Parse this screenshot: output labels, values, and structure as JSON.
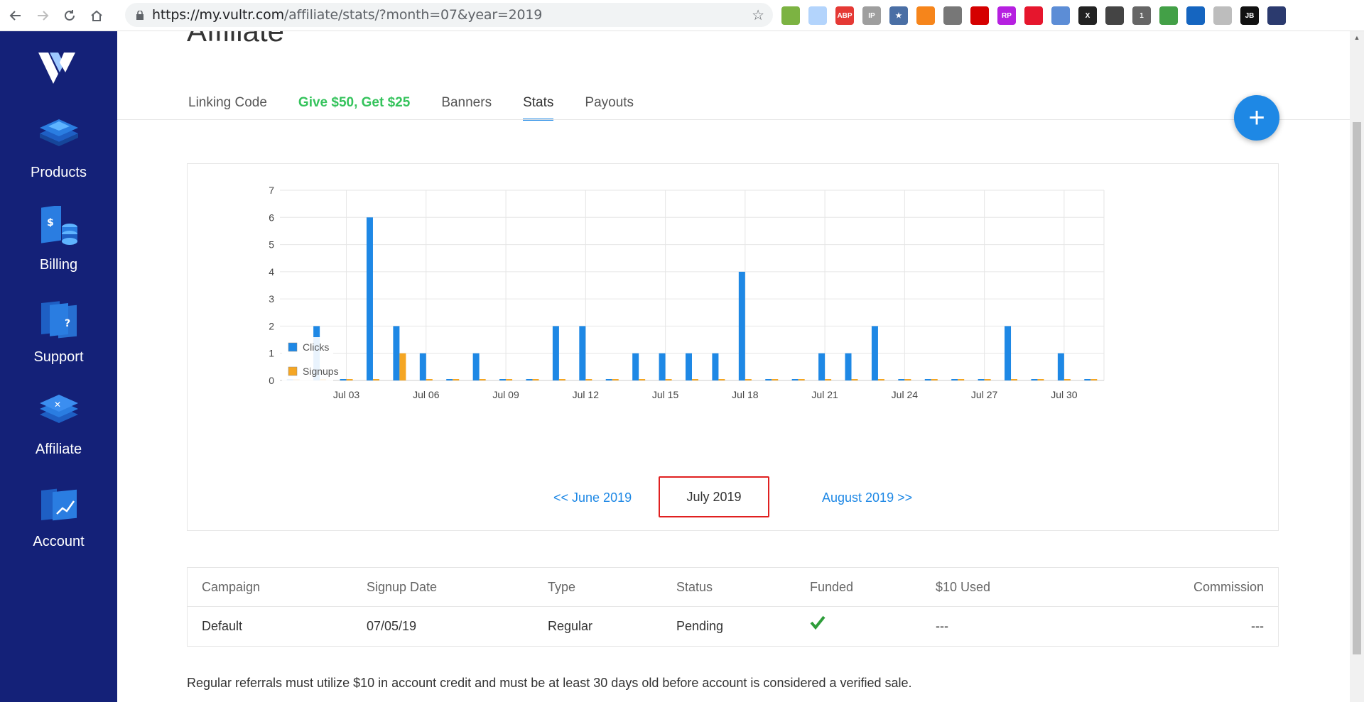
{
  "browser": {
    "url_host": "https://my.vultr.com",
    "url_path": "/affiliate/stats/?month=07&year=2019",
    "extensions": [
      {
        "name": "circle-ext-icon",
        "color": "#7cb342",
        "text": ""
      },
      {
        "name": "cloud-ext-icon",
        "color": "#b3d4fc",
        "text": ""
      },
      {
        "name": "adblock-plus-icon",
        "color": "#e53935",
        "text": "ABP"
      },
      {
        "name": "ip-ext-icon",
        "color": "#9e9e9e",
        "text": "IP"
      },
      {
        "name": "bookmark-star-ext-icon",
        "color": "#4a6fa5",
        "text": "★"
      },
      {
        "name": "metamask-fox-icon",
        "color": "#f6851b",
        "text": ""
      },
      {
        "name": "parachute-ext-icon",
        "color": "#777777",
        "text": ""
      },
      {
        "name": "red-circle-ext-icon",
        "color": "#d50000",
        "text": ""
      },
      {
        "name": "rp-ext-icon",
        "color": "#b620e0",
        "text": "RP"
      },
      {
        "name": "weibo-ext-icon",
        "color": "#e6162d",
        "text": ""
      },
      {
        "name": "feather-ext-icon",
        "color": "#5c8dd6",
        "text": ""
      },
      {
        "name": "x-ext-icon",
        "color": "#222222",
        "text": "X"
      },
      {
        "name": "aperture-ext-icon",
        "color": "#444444",
        "text": ""
      },
      {
        "name": "cat-ext-icon",
        "color": "#666666",
        "text": "1"
      },
      {
        "name": "green-leaf-ext-icon",
        "color": "#43a047",
        "text": ""
      },
      {
        "name": "globe-ext-icon",
        "color": "#1565c0",
        "text": ""
      },
      {
        "name": "check-ext-icon",
        "color": "#bdbdbd",
        "text": ""
      },
      {
        "name": "jb-ext-icon",
        "color": "#111111",
        "text": "JB"
      },
      {
        "name": "profile-avatar-icon",
        "color": "#2b3a6e",
        "text": ""
      }
    ]
  },
  "sidebar": {
    "items": [
      {
        "label": "Products"
      },
      {
        "label": "Billing"
      },
      {
        "label": "Support"
      },
      {
        "label": "Affiliate"
      },
      {
        "label": "Account"
      }
    ]
  },
  "page": {
    "title": "Affiliate",
    "tabs": [
      {
        "label": "Linking Code"
      },
      {
        "label": "Give $50, Get $25"
      },
      {
        "label": "Banners"
      },
      {
        "label": "Stats"
      },
      {
        "label": "Payouts"
      }
    ]
  },
  "chart_data": {
    "type": "bar",
    "categories": [
      "Jul 01",
      "Jul 02",
      "Jul 03",
      "Jul 04",
      "Jul 05",
      "Jul 06",
      "Jul 07",
      "Jul 08",
      "Jul 09",
      "Jul 10",
      "Jul 11",
      "Jul 12",
      "Jul 13",
      "Jul 14",
      "Jul 15",
      "Jul 16",
      "Jul 17",
      "Jul 18",
      "Jul 19",
      "Jul 20",
      "Jul 21",
      "Jul 22",
      "Jul 23",
      "Jul 24",
      "Jul 25",
      "Jul 26",
      "Jul 27",
      "Jul 28",
      "Jul 29",
      "Jul 30",
      "Jul 31"
    ],
    "tick_labels": [
      "Jul 03",
      "Jul 06",
      "Jul 09",
      "Jul 12",
      "Jul 15",
      "Jul 18",
      "Jul 21",
      "Jul 24",
      "Jul 27",
      "Jul 30"
    ],
    "series": [
      {
        "name": "Clicks",
        "color": "#1e88e5",
        "values": [
          0,
          2,
          0,
          6,
          2,
          1,
          0,
          1,
          0,
          0,
          2,
          2,
          0,
          1,
          1,
          1,
          1,
          4,
          0,
          0,
          1,
          1,
          2,
          0,
          0,
          0,
          0,
          2,
          0,
          1,
          0
        ]
      },
      {
        "name": "Signups",
        "color": "#f5a623",
        "values": [
          0,
          0,
          0,
          0,
          1,
          0,
          0,
          0,
          0,
          0,
          0,
          0,
          0,
          0,
          0,
          0,
          0,
          0,
          0,
          0,
          0,
          0,
          0,
          0,
          0,
          0,
          0,
          0,
          0,
          0,
          0
        ]
      }
    ],
    "ylim": [
      0,
      7
    ],
    "y_ticks": [
      "0",
      "1",
      "2",
      "3",
      "4",
      "5",
      "6",
      "7"
    ],
    "grid": true,
    "legend": "left-bottom"
  },
  "month_nav": {
    "prev": "<< June 2019",
    "current": "July 2019",
    "next": "August 2019 >>"
  },
  "table": {
    "headers": [
      "Campaign",
      "Signup Date",
      "Type",
      "Status",
      "Funded",
      "$10 Used",
      "Commission"
    ],
    "rows": [
      {
        "campaign": "Default",
        "signup_date": "07/05/19",
        "type": "Regular",
        "status": "Pending",
        "funded": "check",
        "used": "---",
        "commission": "---"
      }
    ]
  },
  "footnote": "Regular referrals must utilize $10 in account credit and must be at least 30 days old before account is considered a verified sale."
}
